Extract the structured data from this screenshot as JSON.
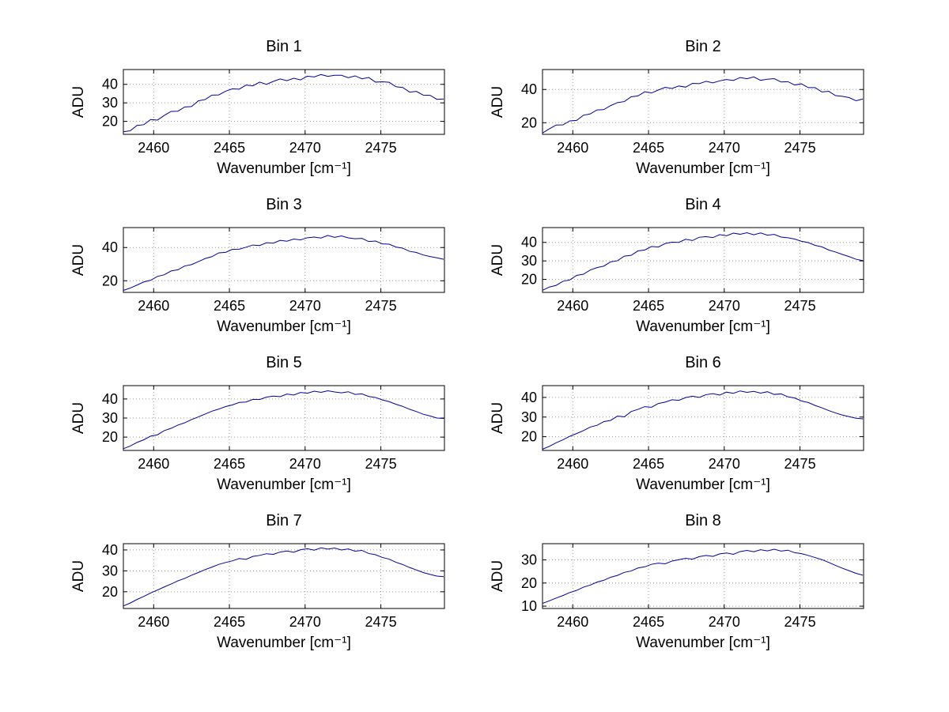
{
  "figure": {
    "background": "#ffffff",
    "line_color": "#00009e",
    "grid_color": "#9a9a9a"
  },
  "chart_data": [
    {
      "type": "line",
      "title": "Bin 1",
      "xlabel": "Wavenumber [cm⁻¹]",
      "ylabel": "ADU",
      "xlim": [
        2458,
        2479.2
      ],
      "ylim": [
        13,
        48
      ],
      "x_ticks": [
        2460,
        2465,
        2470,
        2475
      ],
      "y_ticks": [
        20,
        30,
        40
      ],
      "x_start": 2458,
      "x_step": 0.45,
      "values": [
        14.4,
        14.9,
        17.8,
        18.2,
        21.0,
        20.7,
        23.2,
        25.4,
        25.5,
        27.8,
        28.0,
        31.1,
        31.8,
        34.2,
        34.3,
        36.3,
        37.6,
        37.4,
        39.6,
        39.2,
        41.2,
        40.0,
        41.6,
        42.9,
        42.0,
        43.3,
        42.4,
        44.4,
        44.0,
        45.3,
        44.3,
        44.9,
        44.9,
        43.6,
        44.6,
        43.0,
        43.7,
        41.2,
        41.4,
        41.1,
        38.7,
        38.3,
        35.8,
        36.2,
        34.2,
        34.1,
        31.9,
        32.1
      ]
    },
    {
      "type": "line",
      "title": "Bin 2",
      "xlabel": "Wavenumber [cm⁻¹]",
      "ylabel": "ADU",
      "xlim": [
        2458,
        2479.2
      ],
      "ylim": [
        13,
        52
      ],
      "x_ticks": [
        2460,
        2465,
        2470,
        2475
      ],
      "y_ticks": [
        20,
        40
      ],
      "x_start": 2458,
      "x_step": 0.45,
      "values": [
        13.8,
        16.3,
        18.6,
        18.7,
        21.1,
        21.4,
        24.5,
        25.3,
        27.7,
        27.9,
        30.3,
        32.1,
        32.7,
        35.6,
        36.1,
        38.6,
        37.9,
        39.7,
        41.3,
        40.6,
        42.1,
        41.4,
        43.7,
        43.5,
        44.9,
        44.0,
        45.2,
        46.0,
        45.4,
        47.2,
        46.5,
        47.6,
        45.5,
        46.2,
        46.5,
        44.5,
        44.7,
        42.7,
        43.4,
        41.1,
        41.1,
        38.5,
        38.9,
        36.3,
        35.9,
        35.1,
        33.2,
        34.3
      ]
    },
    {
      "type": "line",
      "title": "Bin 3",
      "xlabel": "Wavenumber [cm⁻¹]",
      "ylabel": "ADU",
      "xlim": [
        2458,
        2479.2
      ],
      "ylim": [
        13,
        52
      ],
      "x_ticks": [
        2460,
        2465,
        2470,
        2475
      ],
      "y_ticks": [
        20,
        40
      ],
      "x_start": 2458,
      "x_step": 0.45,
      "values": [
        14.2,
        15.6,
        17.4,
        19.3,
        20.3,
        22.6,
        23.6,
        25.9,
        26.6,
        28.9,
        29.7,
        31.5,
        33.4,
        34.5,
        36.8,
        37.1,
        38.9,
        39.0,
        40.2,
        41.5,
        41.2,
        42.9,
        42.6,
        44.3,
        43.8,
        45.1,
        44.6,
        45.9,
        46.3,
        45.7,
        47.3,
        46.1,
        47.0,
        45.8,
        45.3,
        45.5,
        43.6,
        43.9,
        42.2,
        42.0,
        40.3,
        39.6,
        37.7,
        37.0,
        35.5,
        34.6,
        33.8,
        32.9
      ]
    },
    {
      "type": "line",
      "title": "Bin 4",
      "xlabel": "Wavenumber [cm⁻¹]",
      "ylabel": "ADU",
      "xlim": [
        2458,
        2479.2
      ],
      "ylim": [
        13,
        48
      ],
      "x_ticks": [
        2460,
        2465,
        2470,
        2475
      ],
      "y_ticks": [
        20,
        30,
        40
      ],
      "x_start": 2458,
      "x_step": 0.45,
      "values": [
        14.1,
        15.9,
        16.8,
        19.0,
        19.7,
        22.2,
        22.8,
        25.1,
        26.4,
        27.2,
        29.5,
        30.1,
        32.6,
        33.0,
        35.4,
        35.9,
        37.8,
        37.5,
        39.4,
        40.1,
        40.0,
        41.7,
        41.0,
        42.8,
        43.1,
        42.6,
        44.2,
        43.6,
        45.0,
        44.4,
        45.2,
        44.1,
        45.1,
        43.9,
        44.3,
        42.9,
        42.5,
        41.8,
        40.6,
        39.9,
        38.4,
        37.6,
        35.9,
        34.8,
        33.5,
        32.3,
        30.9,
        30.2
      ]
    },
    {
      "type": "line",
      "title": "Bin 5",
      "xlabel": "Wavenumber [cm⁻¹]",
      "ylabel": "ADU",
      "xlim": [
        2458,
        2479.2
      ],
      "ylim": [
        13,
        47
      ],
      "x_ticks": [
        2460,
        2465,
        2470,
        2475
      ],
      "y_ticks": [
        20,
        30,
        40
      ],
      "x_start": 2458,
      "x_step": 0.45,
      "values": [
        13.9,
        15.3,
        17.2,
        18.6,
        20.5,
        21.2,
        23.4,
        24.6,
        26.3,
        27.5,
        29.2,
        30.6,
        32.1,
        33.6,
        34.7,
        36.0,
        36.9,
        38.2,
        38.4,
        39.8,
        39.7,
        41.0,
        41.5,
        41.2,
        42.6,
        42.1,
        43.4,
        43.0,
        44.1,
        43.5,
        44.3,
        43.7,
        43.2,
        43.8,
        42.4,
        42.7,
        41.3,
        40.8,
        39.5,
        38.6,
        37.2,
        36.1,
        34.6,
        33.4,
        32.0,
        31.1,
        30.0,
        29.8
      ]
    },
    {
      "type": "line",
      "title": "Bin 6",
      "xlabel": "Wavenumber [cm⁻¹]",
      "ylabel": "ADU",
      "xlim": [
        2458,
        2479.2
      ],
      "ylim": [
        13,
        46
      ],
      "x_ticks": [
        2460,
        2465,
        2470,
        2475
      ],
      "y_ticks": [
        20,
        30,
        40
      ],
      "x_start": 2458,
      "x_step": 0.45,
      "values": [
        13.6,
        15.1,
        16.9,
        18.4,
        20.2,
        21.6,
        23.1,
        24.9,
        25.8,
        27.7,
        28.3,
        30.5,
        30.1,
        32.8,
        33.9,
        35.3,
        35.0,
        36.9,
        37.6,
        38.8,
        38.5,
        39.9,
        40.6,
        40.0,
        41.4,
        41.9,
        41.2,
        42.7,
        42.1,
        43.3,
        42.6,
        43.1,
        42.2,
        42.9,
        41.5,
        41.8,
        40.3,
        39.7,
        38.2,
        37.4,
        35.9,
        34.7,
        33.3,
        32.1,
        31.0,
        30.2,
        29.4,
        29.1
      ]
    },
    {
      "type": "line",
      "title": "Bin 7",
      "xlabel": "Wavenumber [cm⁻¹]",
      "ylabel": "ADU",
      "xlim": [
        2458,
        2479.2
      ],
      "ylim": [
        12,
        43
      ],
      "x_ticks": [
        2460,
        2465,
        2470,
        2475
      ],
      "y_ticks": [
        20,
        30,
        40
      ],
      "x_start": 2458,
      "x_step": 0.45,
      "values": [
        13.2,
        14.6,
        16.3,
        17.8,
        19.4,
        20.8,
        22.3,
        23.7,
        25.2,
        26.4,
        27.9,
        29.2,
        30.6,
        31.8,
        33.1,
        34.0,
        34.8,
        35.9,
        35.5,
        36.9,
        37.4,
        38.2,
        37.9,
        39.0,
        39.5,
        38.9,
        40.1,
        40.6,
        39.9,
        41.0,
        40.4,
        40.9,
        40.0,
        40.5,
        39.4,
        39.8,
        38.3,
        37.7,
        36.4,
        35.6,
        34.1,
        33.0,
        31.6,
        30.4,
        29.2,
        28.3,
        27.5,
        27.2
      ]
    },
    {
      "type": "line",
      "title": "Bin 8",
      "xlabel": "Wavenumber [cm⁻¹]",
      "ylabel": "ADU",
      "xlim": [
        2458,
        2479.2
      ],
      "ylim": [
        9,
        37
      ],
      "x_ticks": [
        2460,
        2465,
        2470,
        2475
      ],
      "y_ticks": [
        10,
        20,
        30
      ],
      "x_start": 2458,
      "x_step": 0.45,
      "values": [
        11.2,
        12.3,
        13.5,
        14.6,
        15.9,
        16.8,
        18.2,
        19.1,
        20.4,
        21.2,
        22.5,
        23.3,
        24.6,
        25.2,
        26.5,
        27.0,
        28.1,
        28.6,
        28.3,
        29.5,
        30.1,
        30.7,
        30.3,
        31.4,
        31.9,
        31.5,
        32.6,
        33.0,
        32.4,
        33.6,
        34.1,
        33.5,
        34.4,
        33.9,
        34.6,
        33.8,
        34.2,
        33.1,
        32.7,
        31.9,
        31.0,
        30.1,
        28.9,
        27.6,
        26.4,
        25.3,
        24.2,
        23.4
      ]
    }
  ]
}
